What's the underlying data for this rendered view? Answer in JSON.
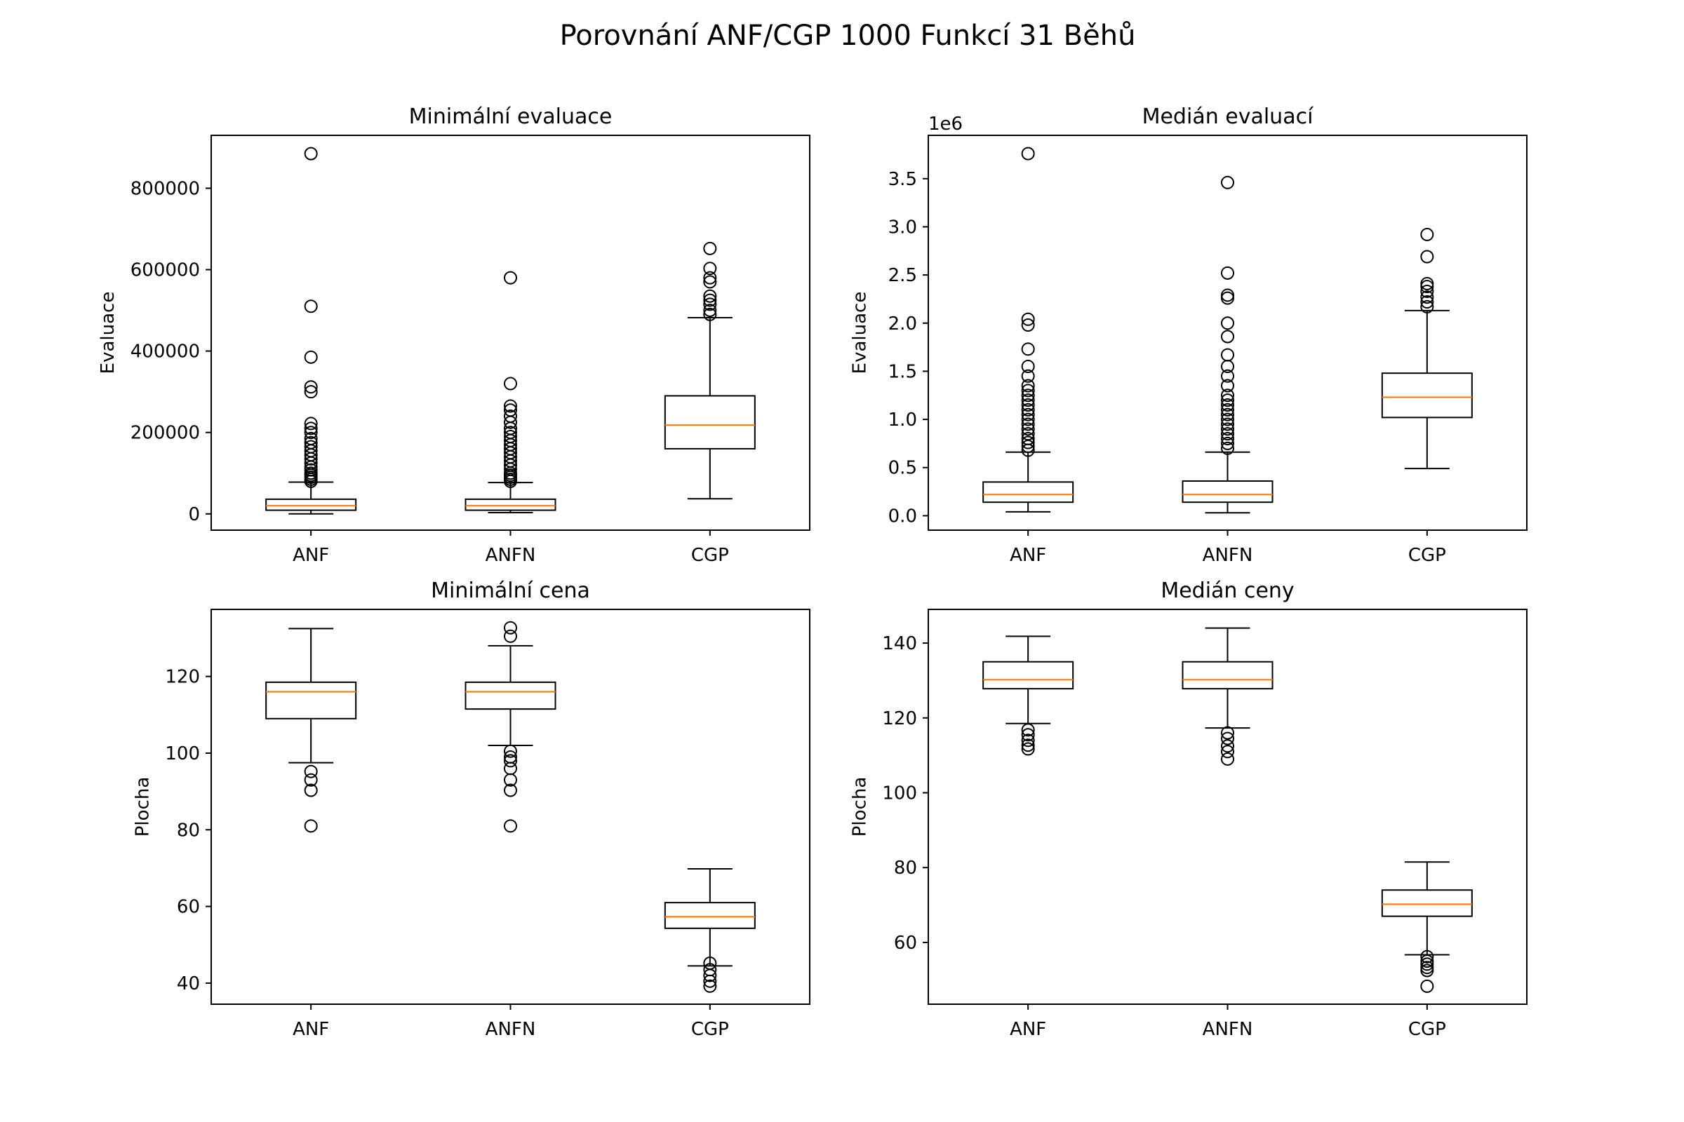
{
  "figure": {
    "suptitle": "Porovnání ANF/CGP 1000 Funkcí 31 Běhů"
  },
  "chart_data": [
    {
      "type": "box",
      "title": "Minimální evaluace",
      "ylabel": "Evaluace",
      "xlabel": "",
      "ylim": [
        -40000,
        930000
      ],
      "yticks": [
        0,
        200000,
        400000,
        600000,
        800000
      ],
      "ytick_labels": [
        "0",
        "200000",
        "400000",
        "600000",
        "800000"
      ],
      "offset_label": "",
      "categories": [
        "ANF",
        "ANFN",
        "CGP"
      ],
      "boxes": [
        {
          "name": "ANF",
          "whislo": 0,
          "q1": 9000,
          "med": 20000,
          "q3": 36000,
          "whishi": 78000,
          "fliers": [
            80000,
            85000,
            90000,
            95000,
            100000,
            108000,
            115000,
            125000,
            135000,
            145000,
            155000,
            165000,
            175000,
            185000,
            200000,
            210000,
            222000,
            300000,
            312000,
            385000,
            510000,
            885000
          ]
        },
        {
          "name": "ANFN",
          "whislo": 3000,
          "q1": 9000,
          "med": 20000,
          "q3": 36000,
          "whishi": 77000,
          "fliers": [
            80000,
            85000,
            90000,
            95000,
            100000,
            110000,
            120000,
            130000,
            140000,
            150000,
            160000,
            170000,
            180000,
            190000,
            200000,
            210000,
            225000,
            240000,
            255000,
            265000,
            320000,
            580000
          ]
        },
        {
          "name": "CGP",
          "whislo": 37000,
          "q1": 160000,
          "med": 218000,
          "q3": 290000,
          "whishi": 482000,
          "fliers": [
            490000,
            500000,
            515000,
            525000,
            535000,
            570000,
            580000,
            603000,
            652000
          ]
        }
      ]
    },
    {
      "type": "box",
      "title": "Medián evaluací",
      "ylabel": "Evaluace",
      "xlabel": "",
      "ylim": [
        -0.15,
        3.95
      ],
      "yticks": [
        0.0,
        0.5,
        1.0,
        1.5,
        2.0,
        2.5,
        3.0,
        3.5
      ],
      "ytick_labels": [
        "0.0",
        "0.5",
        "1.0",
        "1.5",
        "2.0",
        "2.5",
        "3.0",
        "3.5"
      ],
      "offset_label": "1e6",
      "categories": [
        "ANF",
        "ANFN",
        "CGP"
      ],
      "boxes": [
        {
          "name": "ANF",
          "whislo": 0.04,
          "q1": 0.14,
          "med": 0.22,
          "q3": 0.35,
          "whishi": 0.66,
          "fliers": [
            0.68,
            0.72,
            0.76,
            0.8,
            0.85,
            0.9,
            0.95,
            1.0,
            1.05,
            1.1,
            1.15,
            1.2,
            1.25,
            1.3,
            1.35,
            1.45,
            1.55,
            1.73,
            1.98,
            2.04,
            3.76
          ]
        },
        {
          "name": "ANFN",
          "whislo": 0.03,
          "q1": 0.14,
          "med": 0.22,
          "q3": 0.36,
          "whishi": 0.66,
          "fliers": [
            0.7,
            0.75,
            0.8,
            0.85,
            0.9,
            0.95,
            1.0,
            1.05,
            1.1,
            1.15,
            1.2,
            1.25,
            1.35,
            1.45,
            1.55,
            1.67,
            1.86,
            2.0,
            2.26,
            2.29,
            2.52,
            3.46
          ]
        },
        {
          "name": "CGP",
          "whislo": 0.49,
          "q1": 1.02,
          "med": 1.23,
          "q3": 1.48,
          "whishi": 2.13,
          "fliers": [
            2.17,
            2.22,
            2.27,
            2.33,
            2.38,
            2.41,
            2.69,
            2.92
          ]
        }
      ]
    },
    {
      "type": "box",
      "title": "Minimální cena",
      "ylabel": "Plocha",
      "xlabel": "",
      "ylim": [
        34.5,
        137.5
      ],
      "yticks": [
        40,
        60,
        80,
        100,
        120
      ],
      "ytick_labels": [
        "40",
        "60",
        "80",
        "100",
        "120"
      ],
      "offset_label": "",
      "categories": [
        "ANF",
        "ANFN",
        "CGP"
      ],
      "boxes": [
        {
          "name": "ANF",
          "whislo": 97.5,
          "q1": 109.0,
          "med": 116.0,
          "q3": 118.5,
          "whishi": 132.5,
          "fliers": [
            95.2,
            93.0,
            90.3,
            81.0
          ]
        },
        {
          "name": "ANFN",
          "whislo": 102.0,
          "q1": 111.5,
          "med": 116.0,
          "q3": 118.5,
          "whishi": 128.0,
          "fliers": [
            100.5,
            99.0,
            98.0,
            96.0,
            93.0,
            90.3,
            81.0,
            130.5,
            132.7
          ]
        },
        {
          "name": "CGP",
          "whislo": 44.5,
          "q1": 54.3,
          "med": 57.3,
          "q3": 61.0,
          "whishi": 69.8,
          "fliers": [
            45.2,
            43.5,
            42.0,
            40.5,
            39.2
          ]
        }
      ]
    },
    {
      "type": "box",
      "title": "Medián ceny",
      "ylabel": "Plocha",
      "xlabel": "",
      "ylim": [
        43.5,
        149
      ],
      "yticks": [
        60,
        80,
        100,
        120,
        140
      ],
      "ytick_labels": [
        "60",
        "80",
        "100",
        "120",
        "140"
      ],
      "offset_label": "",
      "categories": [
        "ANF",
        "ANFN",
        "CGP"
      ],
      "boxes": [
        {
          "name": "ANF",
          "whislo": 118.5,
          "q1": 127.8,
          "med": 130.2,
          "q3": 135.0,
          "whishi": 141.8,
          "fliers": [
            116.8,
            115.5,
            114.0,
            112.7,
            111.7
          ]
        },
        {
          "name": "ANFN",
          "whislo": 117.3,
          "q1": 127.8,
          "med": 130.2,
          "q3": 135.0,
          "whishi": 144.0,
          "fliers": [
            116.0,
            114.5,
            112.5,
            111.0,
            109.0
          ]
        },
        {
          "name": "CGP",
          "whislo": 56.7,
          "q1": 67.0,
          "med": 70.2,
          "q3": 74.0,
          "whishi": 81.5,
          "fliers": [
            56.2,
            55.0,
            54.2,
            53.3,
            52.5,
            48.3
          ]
        }
      ]
    }
  ]
}
